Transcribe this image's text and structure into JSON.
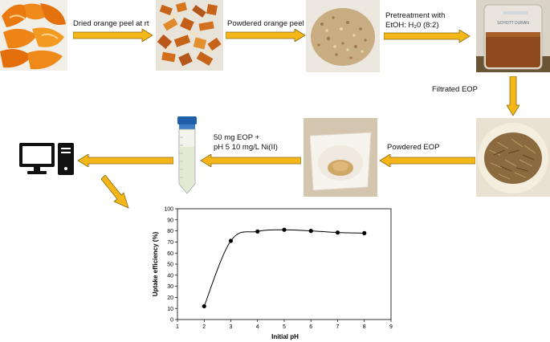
{
  "steps": {
    "s1": "Dried orange peel at rt",
    "s2": "Powdered orange peel",
    "s3_line1": "Pretreatment with",
    "s3_line2": "EtOH: H₂0 (8:2)",
    "s4": "Filtrated EOP",
    "s5": "Powdered EOP",
    "s6_line1": "50 mg EOP +",
    "s6_line2": "pH 5 10 mg/L Ni(II)"
  },
  "beaker_text": "SCHOTT DURAN",
  "icons": [
    "orange-peel-photo",
    "dried-peel-photo",
    "powder-photo",
    "beaker-photo",
    "filtered-eop-photo",
    "powder-bowl-photo",
    "centrifuge-tube-icon",
    "computer-icon"
  ],
  "colors": {
    "arrow_fill": "#f4b619",
    "arrow_stroke": "#8a6a10"
  },
  "chart_data": {
    "type": "line",
    "xlabel": "Initial pH",
    "ylabel": "Uptake efficiency (%)",
    "xlim": [
      1,
      9
    ],
    "ylim": [
      0,
      100
    ],
    "xticks": [
      1,
      2,
      3,
      4,
      5,
      6,
      7,
      8,
      9
    ],
    "yticks": [
      0,
      10,
      20,
      30,
      40,
      50,
      60,
      70,
      80,
      90,
      100
    ],
    "x": [
      2,
      3,
      4,
      5,
      6,
      7,
      8
    ],
    "y": [
      12,
      71,
      79.5,
      81,
      80,
      78.5,
      78
    ],
    "grid": false
  }
}
